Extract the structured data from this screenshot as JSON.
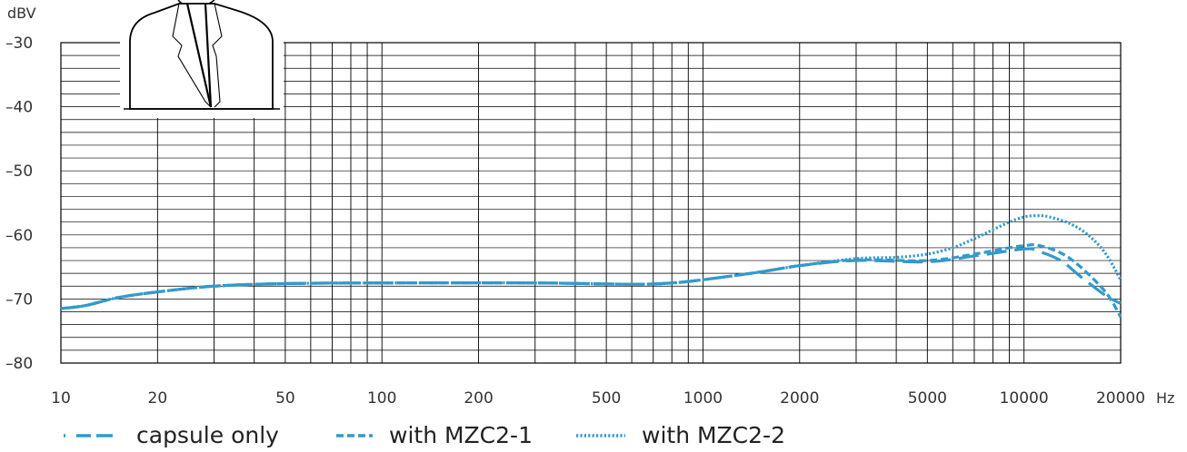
{
  "chart_data": {
    "type": "line",
    "title": "",
    "ylabel": "dBV",
    "xlabel": "Hz",
    "x_scale": "log",
    "xlim": [
      10,
      20000
    ],
    "ylim": [
      -80,
      -30
    ],
    "x_ticks": [
      "10",
      "20",
      "50",
      "100",
      "200",
      "500",
      "1000",
      "2000",
      "5000",
      "10000",
      "20000"
    ],
    "y_ticks": [
      "-30",
      "-40",
      "-50",
      "-60",
      "-70",
      "-80"
    ],
    "grid": true,
    "legend_position": "bottom",
    "series": [
      {
        "name": "capsule only",
        "style": "long-dash",
        "color": "#3399cc",
        "x": [
          10,
          12,
          15,
          20,
          30,
          50,
          100,
          300,
          600,
          800,
          1000,
          1500,
          2000,
          3000,
          5000,
          7000,
          10000,
          11000,
          13000,
          15000,
          18000,
          20000
        ],
        "y": [
          -71.5,
          -71.0,
          -69.8,
          -68.9,
          -68.0,
          -67.6,
          -67.5,
          -67.5,
          -67.7,
          -67.5,
          -67.0,
          -65.8,
          -64.8,
          -64.0,
          -64.2,
          -63.3,
          -62.2,
          -62.5,
          -64.0,
          -66.5,
          -69.5,
          -70.7
        ]
      },
      {
        "name": "with MZC2-1",
        "style": "short-dash",
        "color": "#3399cc",
        "x": [
          10,
          12,
          15,
          20,
          30,
          50,
          100,
          300,
          600,
          800,
          1000,
          1500,
          2000,
          3000,
          5000,
          7000,
          9000,
          10000,
          11000,
          13000,
          15000,
          18000,
          20000
        ],
        "y": [
          -71.5,
          -71.0,
          -69.8,
          -68.9,
          -68.0,
          -67.6,
          -67.5,
          -67.5,
          -67.7,
          -67.5,
          -67.0,
          -65.8,
          -64.8,
          -63.9,
          -64.0,
          -63.0,
          -62.0,
          -61.7,
          -61.6,
          -62.8,
          -65.0,
          -69.0,
          -72.8
        ]
      },
      {
        "name": "with MZC2-2",
        "style": "dotted",
        "color": "#3399cc",
        "x": [
          10,
          12,
          15,
          20,
          30,
          50,
          100,
          300,
          600,
          800,
          1000,
          1500,
          2000,
          3000,
          4000,
          5000,
          6000,
          7000,
          8000,
          9000,
          10000,
          11000,
          12000,
          14000,
          16000,
          18000,
          20000
        ],
        "y": [
          -71.5,
          -71.0,
          -69.8,
          -68.9,
          -68.0,
          -67.6,
          -67.5,
          -67.5,
          -67.7,
          -67.5,
          -67.0,
          -65.8,
          -64.8,
          -63.7,
          -63.5,
          -63.0,
          -62.0,
          -60.6,
          -59.2,
          -58.0,
          -57.2,
          -57.0,
          -57.2,
          -58.3,
          -60.2,
          -63.0,
          -67.0
        ]
      }
    ]
  }
}
